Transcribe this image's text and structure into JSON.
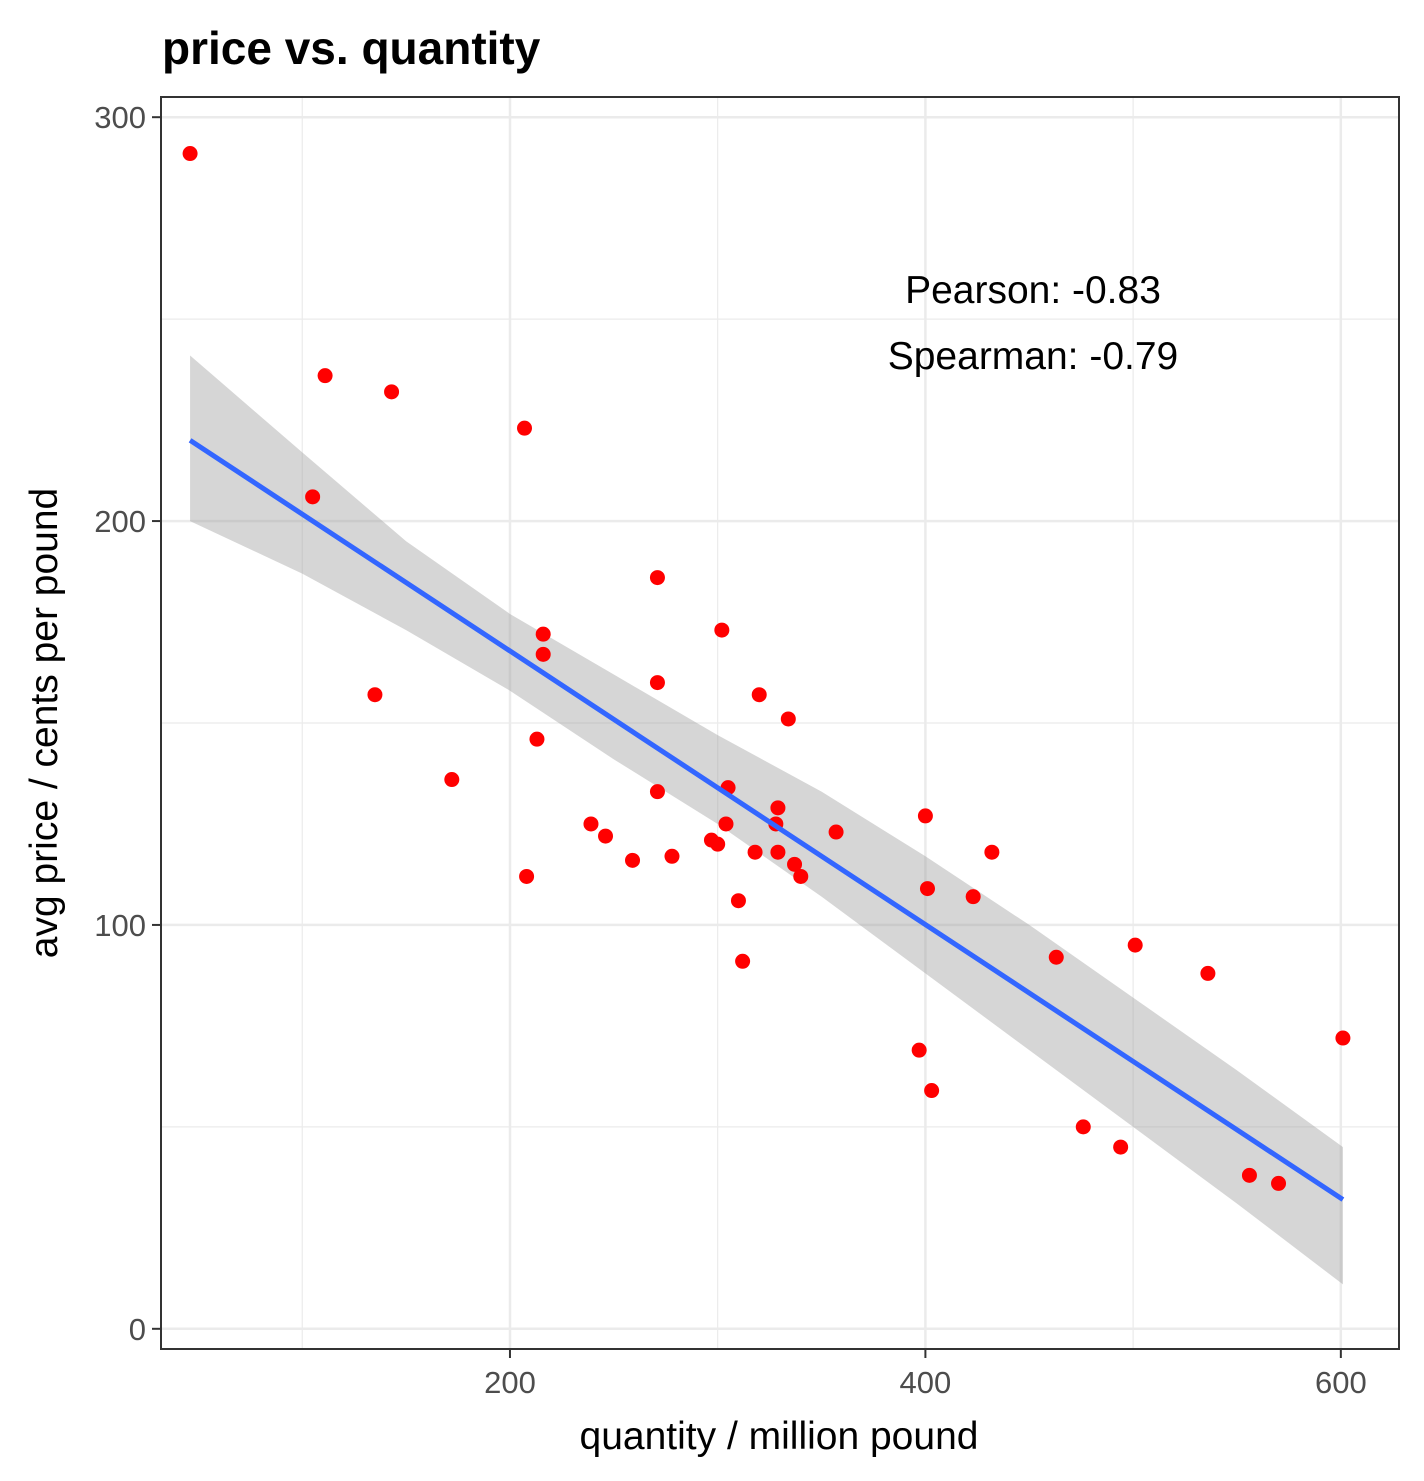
{
  "chart_data": {
    "type": "scatter",
    "title": "price vs. quantity",
    "xlabel": "quantity / million pound",
    "ylabel": "avg price / cents per pound",
    "xlim": [
      32,
      628
    ],
    "ylim": [
      -5,
      305
    ],
    "x_ticks": [
      200,
      400,
      600
    ],
    "x_tick_labels": [
      "200",
      "400",
      "600"
    ],
    "y_ticks": [
      0,
      100,
      200,
      300
    ],
    "y_tick_labels": [
      "0",
      "100",
      "200",
      "300"
    ],
    "grid": true,
    "point_color": "#ff0000",
    "fit_color": "#3366ff",
    "band_color": "#999999",
    "annotations": [
      "Pearson: -0.83",
      "Spearman: -0.79"
    ],
    "points": [
      {
        "x": 46,
        "y": 291
      },
      {
        "x": 111,
        "y": 236
      },
      {
        "x": 143,
        "y": 232
      },
      {
        "x": 105,
        "y": 206
      },
      {
        "x": 135,
        "y": 157
      },
      {
        "x": 172,
        "y": 136
      },
      {
        "x": 207,
        "y": 223
      },
      {
        "x": 208,
        "y": 112
      },
      {
        "x": 213,
        "y": 146
      },
      {
        "x": 216,
        "y": 172
      },
      {
        "x": 216,
        "y": 167
      },
      {
        "x": 239,
        "y": 125
      },
      {
        "x": 246,
        "y": 122
      },
      {
        "x": 259,
        "y": 116
      },
      {
        "x": 271,
        "y": 186
      },
      {
        "x": 271,
        "y": 160
      },
      {
        "x": 271,
        "y": 133
      },
      {
        "x": 278,
        "y": 117
      },
      {
        "x": 297,
        "y": 121
      },
      {
        "x": 300,
        "y": 120
      },
      {
        "x": 302,
        "y": 173
      },
      {
        "x": 304,
        "y": 125
      },
      {
        "x": 305,
        "y": 134
      },
      {
        "x": 310,
        "y": 106
      },
      {
        "x": 312,
        "y": 91
      },
      {
        "x": 318,
        "y": 118
      },
      {
        "x": 320,
        "y": 157
      },
      {
        "x": 328,
        "y": 125
      },
      {
        "x": 329,
        "y": 129
      },
      {
        "x": 329,
        "y": 118
      },
      {
        "x": 334,
        "y": 151
      },
      {
        "x": 337,
        "y": 115
      },
      {
        "x": 340,
        "y": 112
      },
      {
        "x": 357,
        "y": 123
      },
      {
        "x": 397,
        "y": 69
      },
      {
        "x": 400,
        "y": 127
      },
      {
        "x": 401,
        "y": 109
      },
      {
        "x": 403,
        "y": 59
      },
      {
        "x": 423,
        "y": 107
      },
      {
        "x": 432,
        "y": 118
      },
      {
        "x": 463,
        "y": 92
      },
      {
        "x": 476,
        "y": 50
      },
      {
        "x": 494,
        "y": 45
      },
      {
        "x": 501,
        "y": 95
      },
      {
        "x": 536,
        "y": 88
      },
      {
        "x": 556,
        "y": 38
      },
      {
        "x": 570,
        "y": 36
      },
      {
        "x": 601,
        "y": 72
      }
    ],
    "fit_line": {
      "x": [
        46,
        601
      ],
      "y": [
        220,
        32
      ]
    },
    "confidence_band": {
      "x": [
        46,
        100,
        150,
        200,
        250,
        300,
        350,
        400,
        450,
        500,
        550,
        601
      ],
      "upper": [
        241,
        217,
        195,
        177,
        162,
        147,
        133,
        117,
        100,
        82,
        64,
        45
      ],
      "lower": [
        200,
        187,
        173,
        158,
        141,
        125,
        107,
        88,
        69,
        50,
        31,
        11
      ]
    }
  }
}
